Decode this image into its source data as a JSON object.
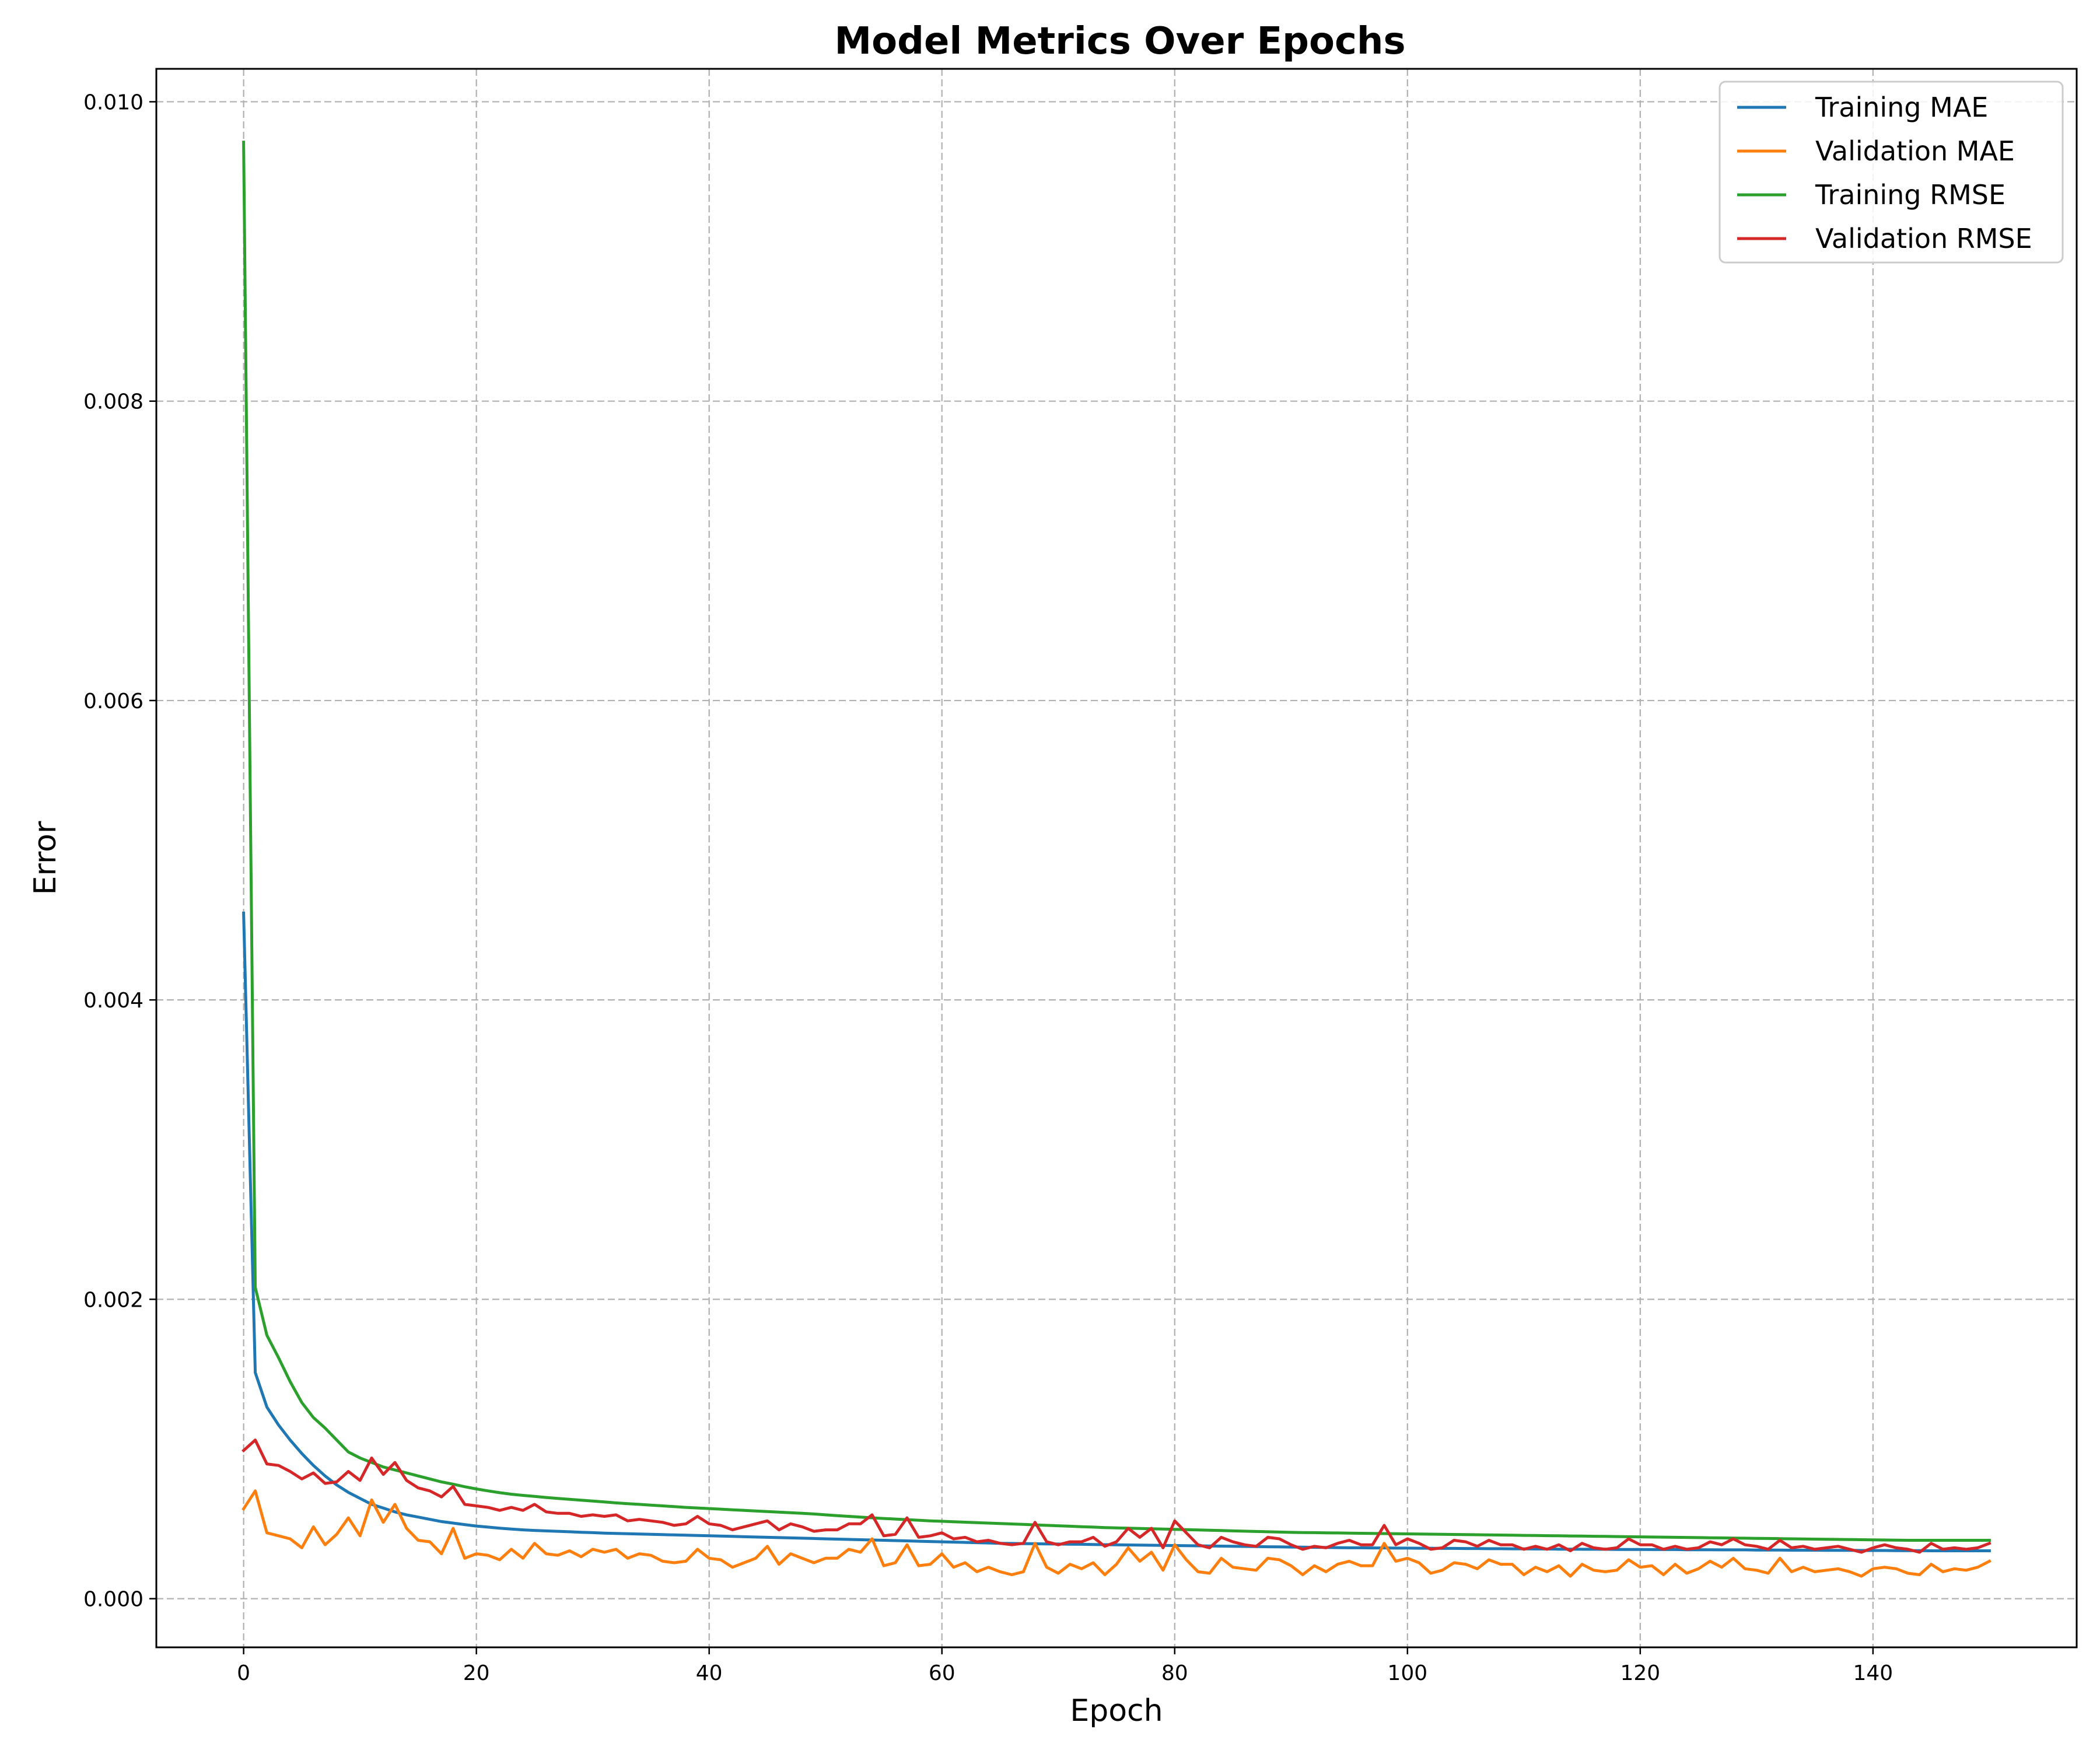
{
  "chart_data": {
    "type": "line",
    "title": "Model Metrics Over Epochs",
    "xlabel": "Epoch",
    "ylabel": "Error",
    "xlim": [
      -7.5,
      157.5
    ],
    "ylim": [
      -0.000325,
      0.01022
    ],
    "xticks": [
      0,
      20,
      40,
      60,
      80,
      100,
      120,
      140
    ],
    "xtick_labels": [
      "0",
      "20",
      "40",
      "60",
      "80",
      "100",
      "120",
      "140"
    ],
    "yticks": [
      0,
      0.002,
      0.004,
      0.006,
      0.008,
      0.01
    ],
    "ytick_labels": [
      "0.000",
      "0.002",
      "0.004",
      "0.006",
      "0.008",
      "0.010"
    ],
    "grid": true,
    "grid_style": "dashed",
    "legend_position": "top-right",
    "x": [
      0,
      1,
      2,
      3,
      4,
      5,
      6,
      7,
      8,
      9,
      10,
      11,
      12,
      13,
      14,
      15,
      16,
      17,
      18,
      19,
      20,
      21,
      22,
      23,
      24,
      25,
      26,
      27,
      28,
      29,
      30,
      31,
      32,
      33,
      34,
      35,
      36,
      37,
      38,
      39,
      40,
      41,
      42,
      43,
      44,
      45,
      46,
      47,
      48,
      49,
      50,
      51,
      52,
      53,
      54,
      55,
      56,
      57,
      58,
      59,
      60,
      61,
      62,
      63,
      64,
      65,
      66,
      67,
      68,
      69,
      70,
      71,
      72,
      73,
      74,
      75,
      76,
      77,
      78,
      79,
      80,
      81,
      82,
      83,
      84,
      85,
      86,
      87,
      88,
      89,
      90,
      91,
      92,
      93,
      94,
      95,
      96,
      97,
      98,
      99,
      100,
      101,
      102,
      103,
      104,
      105,
      106,
      107,
      108,
      109,
      110,
      111,
      112,
      113,
      114,
      115,
      116,
      117,
      118,
      119,
      120,
      121,
      122,
      123,
      124,
      125,
      126,
      127,
      128,
      129,
      130,
      131,
      132,
      133,
      134,
      135,
      136,
      137,
      138,
      139,
      140,
      141,
      142,
      143,
      144,
      145,
      146,
      147,
      148,
      149,
      150
    ],
    "series": [
      {
        "name": "Training MAE",
        "color": "#1f77b4",
        "values": [
          0.00458,
          0.00151,
          0.00128,
          0.00116,
          0.00106,
          0.00097,
          0.00089,
          0.00082,
          0.00076,
          0.00071,
          0.00067,
          0.00063,
          0.000605,
          0.00058,
          0.00056,
          0.000545,
          0.00053,
          0.000515,
          0.000505,
          0.000495,
          0.000485,
          0.000478,
          0.000471,
          0.000465,
          0.00046,
          0.000456,
          0.000453,
          0.00045,
          0.000447,
          0.000444,
          0.000441,
          0.000438,
          0.000436,
          0.000434,
          0.000432,
          0.00043,
          0.000428,
          0.000426,
          0.000424,
          0.000422,
          0.00042,
          0.000418,
          0.000416,
          0.000414,
          0.000412,
          0.00041,
          0.000408,
          0.000406,
          0.000404,
          0.000402,
          0.0004,
          0.000398,
          0.000396,
          0.000394,
          0.000392,
          0.00039,
          0.000388,
          0.000386,
          0.000384,
          0.000382,
          0.00038,
          0.000378,
          0.000376,
          0.000374,
          0.000372,
          0.00037,
          0.000369,
          0.000368,
          0.000367,
          0.000366,
          0.000365,
          0.000364,
          0.000363,
          0.000362,
          0.000361,
          0.00036,
          0.000359,
          0.000358,
          0.000357,
          0.000356,
          0.000355,
          0.000354,
          0.000353,
          0.000352,
          0.000351,
          0.00035,
          0.000349,
          0.000348,
          0.000347,
          0.000346,
          0.000345,
          0.000344,
          0.000343,
          0.000342,
          0.000341,
          0.00034,
          0.00034,
          0.000339,
          0.000339,
          0.000338,
          0.000338,
          0.000337,
          0.000337,
          0.000336,
          0.000336,
          0.000335,
          0.000335,
          0.000334,
          0.000334,
          0.000333,
          0.000333,
          0.000332,
          0.000332,
          0.000331,
          0.000331,
          0.00033,
          0.00033,
          0.00033,
          0.000329,
          0.000329,
          0.000329,
          0.000328,
          0.000328,
          0.000328,
          0.000327,
          0.000327,
          0.000327,
          0.000326,
          0.000326,
          0.000326,
          0.000325,
          0.000325,
          0.000325,
          0.000324,
          0.000324,
          0.000324,
          0.000323,
          0.000323,
          0.000323,
          0.000322,
          0.000322,
          0.000322,
          0.000321,
          0.000321,
          0.000321,
          0.00032,
          0.00032,
          0.00032,
          0.00032,
          0.00032,
          0.00032
        ]
      },
      {
        "name": "Validation MAE",
        "color": "#ff7f0e",
        "values": [
          0.0006,
          0.00072,
          0.00044,
          0.00042,
          0.0004,
          0.00034,
          0.00048,
          0.00036,
          0.00043,
          0.00054,
          0.00042,
          0.00066,
          0.00051,
          0.00063,
          0.00047,
          0.00039,
          0.00038,
          0.0003,
          0.00047,
          0.00027,
          0.0003,
          0.00029,
          0.00026,
          0.00033,
          0.00027,
          0.00037,
          0.0003,
          0.00029,
          0.00032,
          0.00028,
          0.00033,
          0.00031,
          0.00033,
          0.00027,
          0.0003,
          0.00029,
          0.00025,
          0.00024,
          0.00025,
          0.00033,
          0.00027,
          0.00026,
          0.00021,
          0.00024,
          0.00027,
          0.00035,
          0.00023,
          0.0003,
          0.00027,
          0.00024,
          0.00027,
          0.00027,
          0.00033,
          0.00031,
          0.0004,
          0.00022,
          0.00024,
          0.00036,
          0.00022,
          0.00023,
          0.0003,
          0.00021,
          0.00024,
          0.00018,
          0.00021,
          0.00018,
          0.00016,
          0.00018,
          0.00037,
          0.00021,
          0.00017,
          0.00023,
          0.0002,
          0.00024,
          0.00016,
          0.00023,
          0.00034,
          0.00025,
          0.00031,
          0.00019,
          0.00036,
          0.00026,
          0.00018,
          0.00017,
          0.00027,
          0.00021,
          0.0002,
          0.00019,
          0.00027,
          0.00026,
          0.00022,
          0.00016,
          0.00022,
          0.00018,
          0.00023,
          0.00025,
          0.00022,
          0.00022,
          0.00037,
          0.00025,
          0.00027,
          0.00024,
          0.00017,
          0.00019,
          0.00024,
          0.00023,
          0.0002,
          0.00026,
          0.00023,
          0.00023,
          0.00016,
          0.00021,
          0.00018,
          0.00022,
          0.00015,
          0.00023,
          0.00019,
          0.00018,
          0.00019,
          0.00026,
          0.00021,
          0.00022,
          0.00016,
          0.00023,
          0.00017,
          0.0002,
          0.00025,
          0.00021,
          0.00027,
          0.0002,
          0.00019,
          0.00017,
          0.00027,
          0.00018,
          0.00021,
          0.00018,
          0.00019,
          0.0002,
          0.00018,
          0.00015,
          0.0002,
          0.00021,
          0.0002,
          0.00017,
          0.00016,
          0.00023,
          0.00018,
          0.0002,
          0.00019,
          0.00021,
          0.00025
        ]
      },
      {
        "name": "Training RMSE",
        "color": "#2ca02c",
        "values": [
          0.00973,
          0.00208,
          0.00176,
          0.00161,
          0.00145,
          0.00131,
          0.00121,
          0.00114,
          0.00106,
          0.00098,
          0.00094,
          0.00091,
          0.00088,
          0.00086,
          0.00084,
          0.00082,
          0.0008,
          0.00078,
          0.000765,
          0.000748,
          0.000733,
          0.00072,
          0.000708,
          0.000698,
          0.00069,
          0.000683,
          0.000676,
          0.00067,
          0.000664,
          0.000658,
          0.000652,
          0.000646,
          0.00064,
          0.000635,
          0.00063,
          0.000625,
          0.00062,
          0.000615,
          0.00061,
          0.000606,
          0.000602,
          0.000598,
          0.000594,
          0.00059,
          0.000586,
          0.000582,
          0.000578,
          0.000574,
          0.00057,
          0.000566,
          0.00056,
          0.000555,
          0.00055,
          0.000545,
          0.00054,
          0.000536,
          0.000532,
          0.000528,
          0.000524,
          0.00052,
          0.000517,
          0.000514,
          0.000511,
          0.000508,
          0.000505,
          0.000502,
          0.000499,
          0.000496,
          0.000493,
          0.00049,
          0.000487,
          0.000484,
          0.000481,
          0.000478,
          0.000475,
          0.000473,
          0.000471,
          0.000469,
          0.000467,
          0.000465,
          0.000463,
          0.000461,
          0.000459,
          0.000457,
          0.000455,
          0.000453,
          0.000451,
          0.000449,
          0.000447,
          0.000445,
          0.000443,
          0.000442,
          0.000441,
          0.00044,
          0.000439,
          0.000438,
          0.000437,
          0.000436,
          0.000435,
          0.000434,
          0.000433,
          0.000432,
          0.000431,
          0.00043,
          0.000429,
          0.000428,
          0.000427,
          0.000426,
          0.000425,
          0.000424,
          0.000423,
          0.000422,
          0.000421,
          0.00042,
          0.000419,
          0.000418,
          0.000417,
          0.000416,
          0.000415,
          0.000414,
          0.000413,
          0.000412,
          0.000411,
          0.00041,
          0.000409,
          0.000408,
          0.000407,
          0.000406,
          0.000405,
          0.000404,
          0.000403,
          0.000402,
          0.000401,
          0.0004,
          0.000399,
          0.000398,
          0.000397,
          0.000396,
          0.000395,
          0.000394,
          0.000393,
          0.000392,
          0.000391,
          0.00039,
          0.00039,
          0.00039,
          0.00039,
          0.00039,
          0.00039,
          0.00039,
          0.00039
        ]
      },
      {
        "name": "Validation RMSE",
        "color": "#d62728",
        "values": [
          0.00099,
          0.00106,
          0.0009,
          0.00089,
          0.00085,
          0.0008,
          0.00084,
          0.00077,
          0.00078,
          0.00085,
          0.00079,
          0.00094,
          0.00083,
          0.00091,
          0.00079,
          0.00074,
          0.00072,
          0.00068,
          0.00075,
          0.00063,
          0.00062,
          0.00061,
          0.00059,
          0.00061,
          0.00059,
          0.00063,
          0.00058,
          0.00057,
          0.00057,
          0.00055,
          0.00056,
          0.00055,
          0.00056,
          0.00052,
          0.00053,
          0.00052,
          0.00051,
          0.00049,
          0.0005,
          0.00055,
          0.0005,
          0.00049,
          0.00046,
          0.00048,
          0.0005,
          0.00052,
          0.00046,
          0.0005,
          0.00048,
          0.00045,
          0.00046,
          0.00046,
          0.0005,
          0.0005,
          0.00056,
          0.00042,
          0.00043,
          0.00054,
          0.00041,
          0.00042,
          0.00044,
          0.0004,
          0.00041,
          0.00038,
          0.00039,
          0.00037,
          0.00036,
          0.00037,
          0.00051,
          0.00038,
          0.00036,
          0.00038,
          0.00038,
          0.00041,
          0.00035,
          0.00038,
          0.00047,
          0.00041,
          0.00047,
          0.00034,
          0.00052,
          0.00044,
          0.00036,
          0.00034,
          0.00041,
          0.00038,
          0.00036,
          0.00035,
          0.00041,
          0.0004,
          0.00036,
          0.00033,
          0.00035,
          0.00034,
          0.00037,
          0.00039,
          0.00036,
          0.00036,
          0.00049,
          0.00036,
          0.0004,
          0.00037,
          0.00033,
          0.00034,
          0.00039,
          0.00038,
          0.00035,
          0.00039,
          0.00036,
          0.00036,
          0.00033,
          0.00035,
          0.00033,
          0.00036,
          0.00032,
          0.00037,
          0.00034,
          0.00033,
          0.00034,
          0.0004,
          0.00036,
          0.00036,
          0.00033,
          0.00035,
          0.00033,
          0.00034,
          0.00038,
          0.00036,
          0.0004,
          0.00036,
          0.00035,
          0.00033,
          0.00039,
          0.00034,
          0.00035,
          0.00033,
          0.00034,
          0.00035,
          0.00033,
          0.00031,
          0.00034,
          0.00036,
          0.00034,
          0.00033,
          0.00031,
          0.00037,
          0.00033,
          0.00034,
          0.00033,
          0.00034,
          0.00037
        ]
      }
    ]
  }
}
